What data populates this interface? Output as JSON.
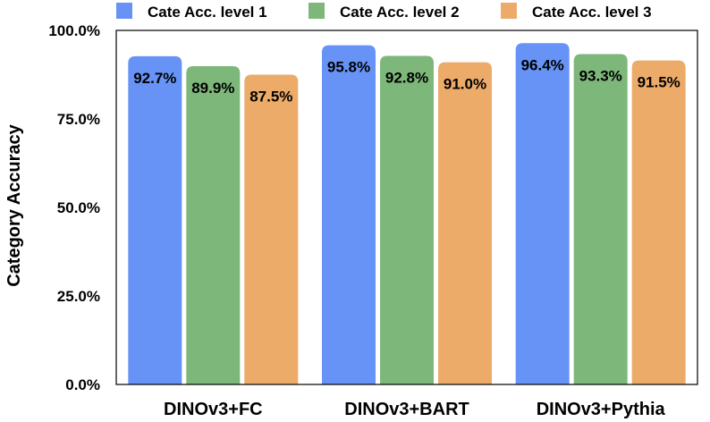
{
  "chart_data": {
    "type": "bar",
    "title": "",
    "xlabel": "",
    "ylabel": "Category Accuracy",
    "categories": [
      "DINOv3+FC",
      "DINOv3+BART",
      "DINOv3+Pythia"
    ],
    "series": [
      {
        "name": "Cate Acc. level 1",
        "color": "#6693f5",
        "values": [
          92.7,
          95.8,
          96.4
        ],
        "labels": [
          "92.7%",
          "95.8%",
          "96.4%"
        ]
      },
      {
        "name": "Cate Acc. level 2",
        "color": "#7db77a",
        "values": [
          89.9,
          92.8,
          93.3
        ],
        "labels": [
          "89.9%",
          "92.8%",
          "93.3%"
        ]
      },
      {
        "name": "Cate Acc. level 3",
        "color": "#ecab69",
        "values": [
          87.5,
          91.0,
          91.5
        ],
        "labels": [
          "87.5%",
          "91.0%",
          "91.5%"
        ]
      }
    ],
    "ylim": [
      0,
      100
    ],
    "yticks": [
      0,
      25,
      50,
      75,
      100
    ],
    "ytick_labels": [
      "0.0%",
      "25.0%",
      "50.0%",
      "75.0%",
      "100.0%"
    ],
    "grid": false,
    "legend_position": "top"
  }
}
